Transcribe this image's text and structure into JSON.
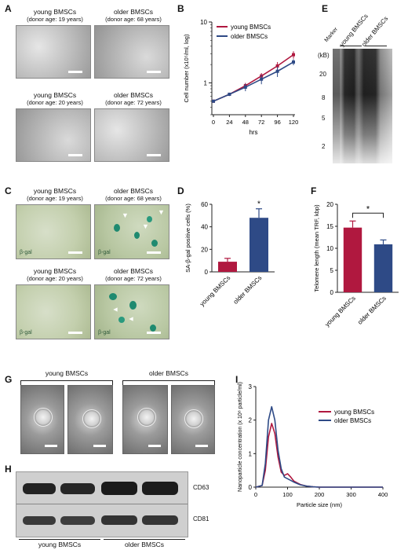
{
  "panels": {
    "A": {
      "label": "A",
      "images": [
        {
          "title": "young BMSCs",
          "sub": "(donor age: 19 years)"
        },
        {
          "title": "older BMSCs",
          "sub": "(donor age: 68 years)"
        },
        {
          "title": "young BMSCs",
          "sub": "(donor age: 20 years)"
        },
        {
          "title": "older BMSCs",
          "sub": "(donor age: 72 years)"
        }
      ]
    },
    "B": {
      "label": "B"
    },
    "C": {
      "label": "C",
      "images": [
        {
          "title": "young BMSCs",
          "sub": "(donor age: 19 years)",
          "tag": "β-gal"
        },
        {
          "title": "older BMSCs",
          "sub": "(donor age: 68 years)",
          "tag": "β-gal"
        },
        {
          "title": "young BMSCs",
          "sub": "(donor age: 20 years)",
          "tag": "β-gal"
        },
        {
          "title": "older BMSCs",
          "sub": "(donor age: 72 years)",
          "tag": "β-gal"
        }
      ]
    },
    "D": {
      "label": "D"
    },
    "E": {
      "label": "E",
      "lanes": [
        "Marker",
        "young BMSCs",
        "older BMSCs"
      ],
      "unit": "(kB)",
      "markers": [
        "20",
        "8",
        "5",
        "2"
      ]
    },
    "F": {
      "label": "F"
    },
    "G": {
      "label": "G",
      "groups": [
        "young BMSCs",
        "older BMSCs"
      ]
    },
    "H": {
      "label": "H",
      "bands": [
        "CD63",
        "CD81"
      ],
      "groups": [
        "young BMSCs",
        "older BMSCs"
      ]
    },
    "I": {
      "label": "I"
    }
  },
  "colors": {
    "young": "#b0183f",
    "older": "#2e4a86"
  },
  "chart_data": [
    {
      "panel": "B",
      "type": "line",
      "xlabel": "hrs",
      "ylabel": "Cell number (x10⁵/ml, log)",
      "x": [
        0,
        24,
        48,
        72,
        96,
        120
      ],
      "xticks": [
        "0",
        "24",
        "48",
        "72",
        "96",
        "120"
      ],
      "ylog": true,
      "ylim": [
        0.3,
        10
      ],
      "yticks": [
        {
          "v": 1,
          "label": "1"
        },
        {
          "v": 10,
          "label": "10"
        }
      ],
      "legend": "top-left",
      "series": [
        {
          "name": "young BMSCs",
          "color": "#b0183f",
          "values": [
            0.5,
            0.65,
            0.9,
            1.3,
            1.9,
            2.9
          ],
          "err": [
            0.02,
            0.04,
            0.1,
            0.15,
            0.3,
            0.4
          ]
        },
        {
          "name": "older BMSCs",
          "color": "#2e4a86",
          "values": [
            0.5,
            0.65,
            0.85,
            1.15,
            1.55,
            2.2
          ],
          "err": [
            0.02,
            0.04,
            0.12,
            0.2,
            0.3,
            0.25
          ]
        }
      ]
    },
    {
      "panel": "D",
      "type": "bar",
      "ylabel": "SA-β-gal positive cells (%)",
      "categories": [
        "young BMSCs",
        "older BMSCs"
      ],
      "values": [
        9,
        48
      ],
      "err": [
        3,
        8
      ],
      "colors": [
        "#b0183f",
        "#2e4a86"
      ],
      "ylim": [
        0,
        60
      ],
      "yticks": [
        "0",
        "20",
        "40",
        "60"
      ],
      "significance": "*"
    },
    {
      "panel": "F",
      "type": "bar",
      "ylabel": "Telomere length (mean TRF, kbp)",
      "categories": [
        "young BMSCs",
        "older BMSCs"
      ],
      "values": [
        14.7,
        10.9
      ],
      "err": [
        1.5,
        1.0
      ],
      "colors": [
        "#b0183f",
        "#2e4a86"
      ],
      "ylim": [
        0,
        20
      ],
      "yticks": [
        "0",
        "5",
        "10",
        "15",
        "20"
      ],
      "significance": "*"
    },
    {
      "panel": "I",
      "type": "line",
      "xlabel": "Particle size (nm)",
      "ylabel": "Nanoparticle concentration (x 10⁸ particle/ml)",
      "xlim": [
        0,
        400
      ],
      "xticks": [
        "0",
        "100",
        "200",
        "300",
        "400"
      ],
      "ylim": [
        0,
        3
      ],
      "yticks": [
        "0",
        "1",
        "2",
        "3"
      ],
      "legend": "top-right",
      "series": [
        {
          "name": "young BMSCs",
          "color": "#b0183f",
          "x": [
            0,
            20,
            30,
            40,
            50,
            60,
            70,
            80,
            90,
            100,
            110,
            120,
            140,
            160,
            180,
            200,
            250,
            300,
            400
          ],
          "values": [
            0,
            0.05,
            0.5,
            1.5,
            1.9,
            1.6,
            0.9,
            0.45,
            0.35,
            0.4,
            0.3,
            0.18,
            0.08,
            0.03,
            0.01,
            0,
            0,
            0,
            0
          ]
        },
        {
          "name": "older BMSCs",
          "color": "#2e4a86",
          "x": [
            0,
            20,
            30,
            40,
            50,
            60,
            70,
            80,
            90,
            100,
            110,
            120,
            140,
            160,
            180,
            200,
            250,
            300,
            400
          ],
          "values": [
            0,
            0.05,
            0.7,
            2.0,
            2.4,
            2.0,
            1.1,
            0.55,
            0.3,
            0.25,
            0.2,
            0.15,
            0.07,
            0.03,
            0.01,
            0,
            0,
            0,
            0
          ]
        }
      ]
    }
  ]
}
